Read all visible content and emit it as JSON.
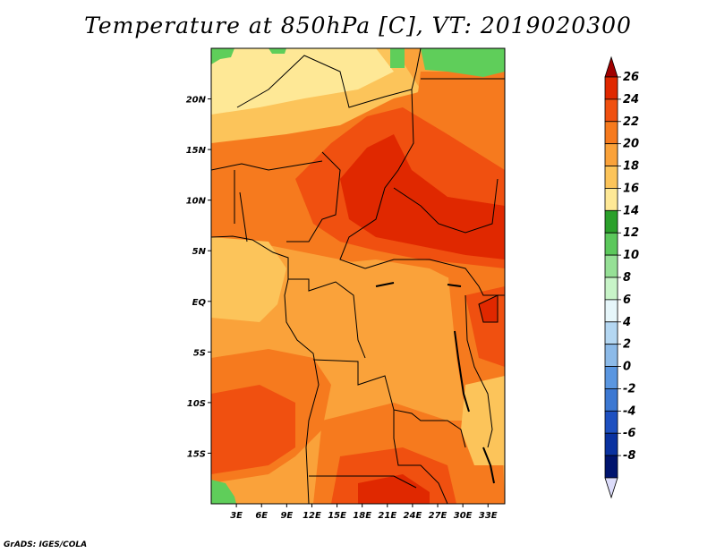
{
  "title": "Temperature at 850hPa [C], VT: 2019020300",
  "credit": "GrADS: IGES/COLA",
  "map": {
    "lon_range": [
      0,
      35
    ],
    "lat_range": [
      -20,
      25
    ],
    "lat_ticks": [
      {
        "value": 20,
        "label": "20N"
      },
      {
        "value": 15,
        "label": "15N"
      },
      {
        "value": 10,
        "label": "10N"
      },
      {
        "value": 5,
        "label": "5N"
      },
      {
        "value": 0,
        "label": "EQ"
      },
      {
        "value": -5,
        "label": "5S"
      },
      {
        "value": -10,
        "label": "10S"
      },
      {
        "value": -15,
        "label": "15S"
      }
    ],
    "lon_ticks": [
      {
        "value": 3,
        "label": "3E"
      },
      {
        "value": 6,
        "label": "6E"
      },
      {
        "value": 9,
        "label": "9E"
      },
      {
        "value": 12,
        "label": "12E"
      },
      {
        "value": 15,
        "label": "15E"
      },
      {
        "value": 18,
        "label": "18E"
      },
      {
        "value": 21,
        "label": "21E"
      },
      {
        "value": 24,
        "label": "24E"
      },
      {
        "value": 27,
        "label": "27E"
      },
      {
        "value": 30,
        "label": "30E"
      },
      {
        "value": 33,
        "label": "33E"
      }
    ]
  },
  "colorbar": {
    "labels": [
      "26",
      "24",
      "22",
      "20",
      "18",
      "16",
      "14",
      "12",
      "10",
      "8",
      "6",
      "4",
      "2",
      "0",
      "-2",
      "-4",
      "-6",
      "-8"
    ],
    "colors": [
      "#a00000",
      "#e02800",
      "#f05010",
      "#f67a1e",
      "#faa23a",
      "#fcc45a",
      "#fee896",
      "#2ba02b",
      "#5cc85c",
      "#96e096",
      "#c8f4c8",
      "#e6f6fa",
      "#b4d7f2",
      "#8cbae8",
      "#5a96e0",
      "#3c78d2",
      "#1e50c0",
      "#0a32a0",
      "#00146e",
      "#dcdcfa"
    ]
  },
  "temperature_field": {
    "units": "C",
    "fill_colors": {
      "lt14_green": "#5fce5a",
      "14_16": "#fee896",
      "16_18": "#fcc45a",
      "18_20": "#faa23a",
      "20_22": "#f67a1e",
      "22_24": "#f05010",
      "24_26": "#e02800"
    }
  }
}
